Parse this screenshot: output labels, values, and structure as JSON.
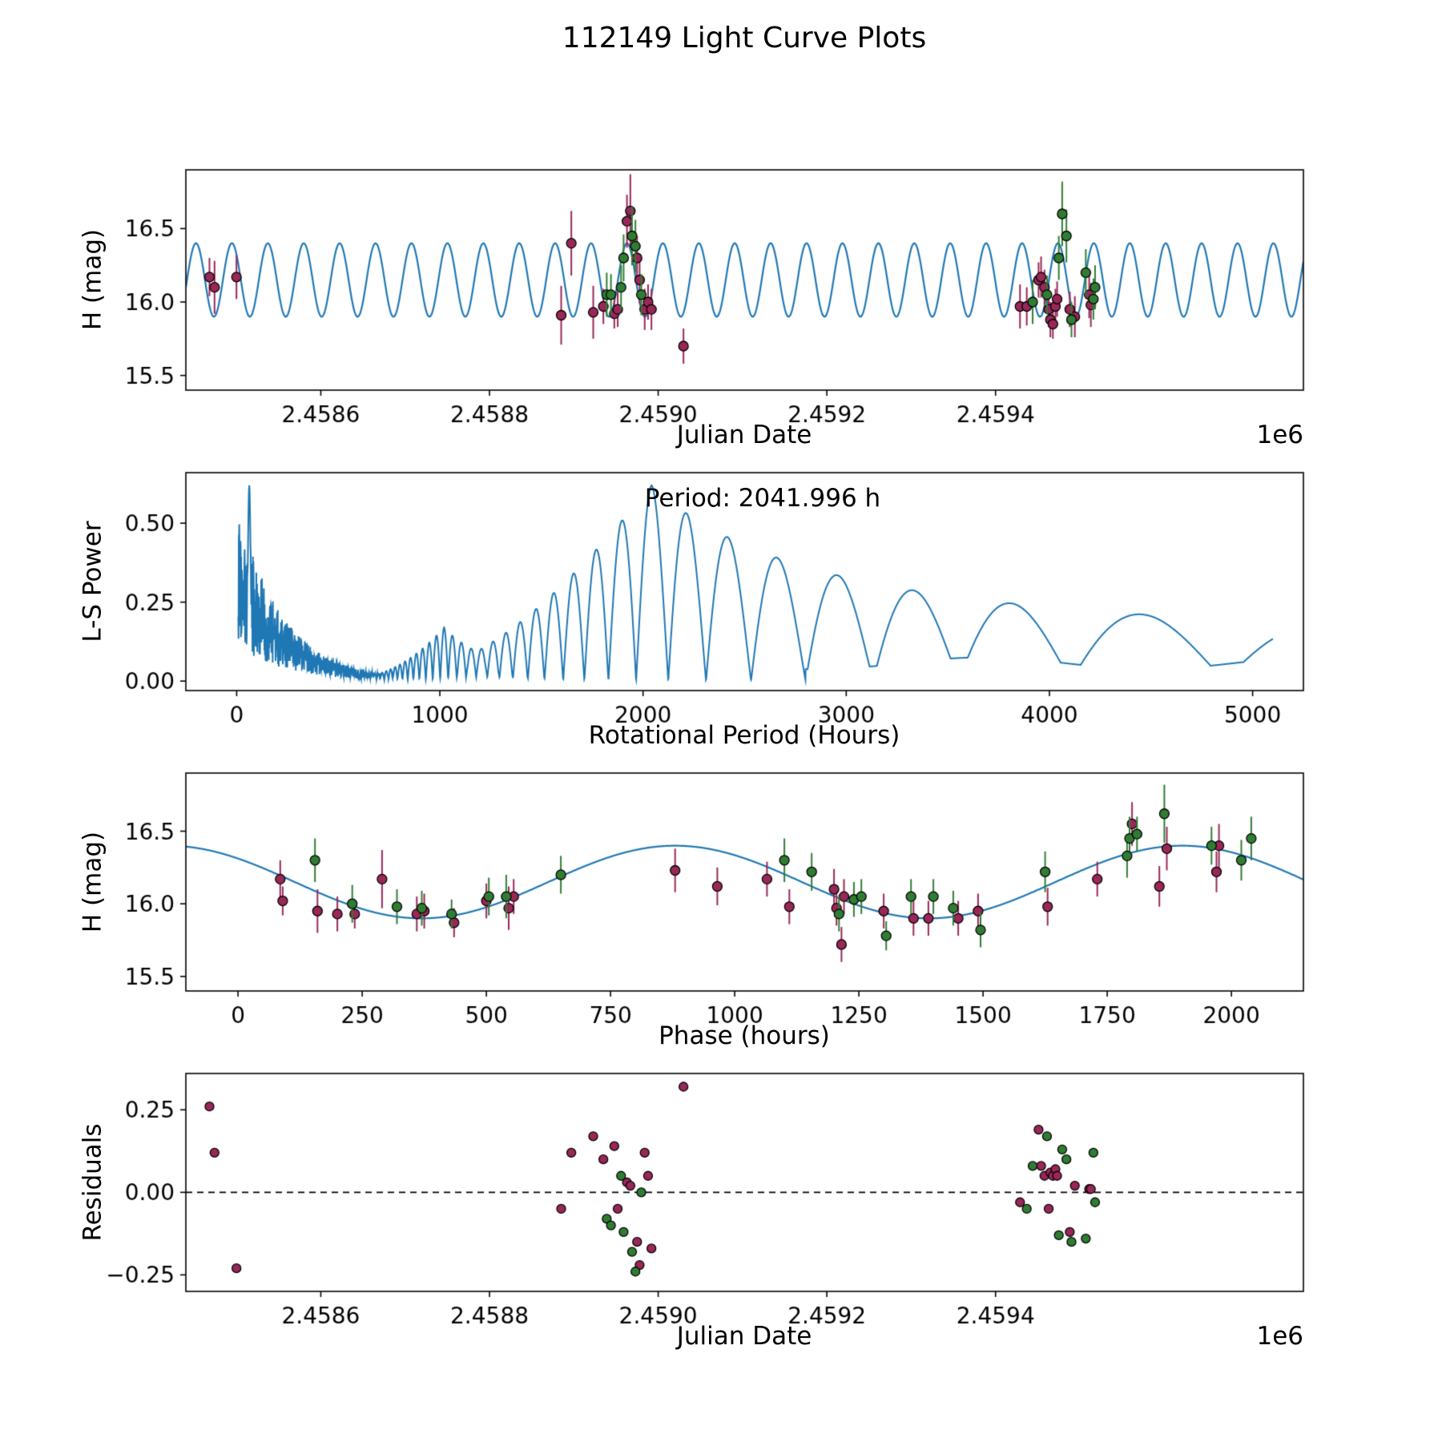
{
  "title": "112149 Light Curve Plots",
  "colors": {
    "line": "#1f77b4",
    "maroon": "#992758",
    "green": "#2f7d33",
    "edge": "#000000"
  },
  "chart_data": [
    {
      "id": "lightcurve",
      "type": "line+scatter",
      "xlabel": "Julian Date",
      "ylabel": "H (mag)",
      "offset_label": "1e6",
      "xlim": [
        2458440,
        2459765
      ],
      "ylim": [
        15.4,
        16.9
      ],
      "xticks": [
        2458600,
        2458800,
        2459000,
        2459200,
        2459400
      ],
      "xtick_labels": [
        "2.4586",
        "2.4588",
        "2.4590",
        "2.4592",
        "2.4594"
      ],
      "yticks": [
        15.5,
        16.0,
        16.5
      ],
      "ytick_labels": [
        "15.5",
        "16.0",
        "16.5"
      ],
      "marker": 6,
      "fit": {
        "type": "sinusoid",
        "mean": 16.15,
        "amplitude": 0.25,
        "period": 42.583,
        "t_max": 2458963
      },
      "series": [
        {
          "name": "observations-maroon",
          "color": "maroon",
          "points": [
            [
              2458468,
              16.17,
              0.13
            ],
            [
              2458474,
              16.1,
              0.18
            ],
            [
              2458500,
              16.17,
              0.15
            ],
            [
              2458885,
              15.91,
              0.2
            ],
            [
              2458897,
              16.4,
              0.22
            ],
            [
              2458923,
              15.93,
              0.18
            ],
            [
              2458935,
              15.97,
              0.12
            ],
            [
              2458948,
              15.92,
              0.1
            ],
            [
              2458952,
              15.95,
              0.12
            ],
            [
              2458963,
              16.55,
              0.18
            ],
            [
              2458967,
              16.62,
              0.25
            ],
            [
              2458975,
              16.3,
              0.15
            ],
            [
              2458978,
              16.15,
              0.16
            ],
            [
              2458984,
              15.95,
              0.14
            ],
            [
              2458988,
              16.0,
              0.12
            ],
            [
              2458992,
              15.95,
              0.14
            ],
            [
              2459030,
              15.7,
              0.12
            ],
            [
              2459429,
              15.97,
              0.15
            ],
            [
              2459437,
              15.97,
              0.13
            ],
            [
              2459451,
              16.15,
              0.12
            ],
            [
              2459454,
              16.17,
              0.14
            ],
            [
              2459458,
              16.1,
              0.12
            ],
            [
              2459463,
              15.95,
              0.12
            ],
            [
              2459465,
              15.88,
              0.12
            ],
            [
              2459468,
              15.85,
              0.1
            ],
            [
              2459471,
              15.97,
              0.12
            ],
            [
              2459473,
              16.02,
              0.12
            ],
            [
              2459488,
              15.95,
              0.12
            ],
            [
              2459494,
              15.9,
              0.14
            ],
            [
              2459511,
              16.05,
              0.16
            ],
            [
              2459513,
              15.98,
              0.15
            ]
          ]
        },
        {
          "name": "observations-green",
          "color": "green",
          "points": [
            [
              2458939,
              16.05,
              0.15
            ],
            [
              2458944,
              16.05,
              0.14
            ],
            [
              2458956,
              16.1,
              0.15
            ],
            [
              2458959,
              16.3,
              0.16
            ],
            [
              2458969,
              16.45,
              0.2
            ],
            [
              2458973,
              16.38,
              0.18
            ],
            [
              2458980,
              16.05,
              0.14
            ],
            [
              2459444,
              16.0,
              0.15
            ],
            [
              2459461,
              16.05,
              0.13
            ],
            [
              2459475,
              16.3,
              0.15
            ],
            [
              2459479,
              16.6,
              0.22
            ],
            [
              2459484,
              16.45,
              0.18
            ],
            [
              2459490,
              15.88,
              0.12
            ],
            [
              2459507,
              16.2,
              0.16
            ],
            [
              2459516,
              16.02,
              0.14
            ],
            [
              2459518,
              16.1,
              0.15
            ]
          ]
        }
      ]
    },
    {
      "id": "periodogram",
      "type": "line",
      "xlabel": "Rotational Period (Hours)",
      "ylabel": "L-S Power",
      "xlim": [
        -250,
        5250
      ],
      "ylim": [
        -0.03,
        0.66
      ],
      "xticks": [
        0,
        1000,
        2000,
        3000,
        4000,
        5000
      ],
      "xtick_labels": [
        "0",
        "1000",
        "2000",
        "3000",
        "4000",
        "5000"
      ],
      "yticks": [
        0,
        0.25,
        0.5
      ],
      "ytick_labels": [
        "0.00",
        "0.25",
        "0.50"
      ],
      "annotation": {
        "text": "Period: 2041.996 h"
      },
      "best_period_hours": 2041.996,
      "model": {
        "span_hours": 26400,
        "main_period": 2041.996,
        "main_amp": 0.62,
        "decay_short": 5,
        "decay_long": 6.5,
        "harmonic_period": 1021,
        "harmonic_amp": 0.17,
        "harmonic_decay": 6,
        "noise_cutoff": 900,
        "noise_base": 0.58,
        "noise_scale": 220,
        "spike_period": 62,
        "spike_amp": 0.62,
        "spike_width": 7,
        "floor_start": 2800,
        "floor_level": 0.075
      }
    },
    {
      "id": "phase-curve",
      "type": "line+scatter",
      "xlabel": "Phase (hours)",
      "ylabel": "H (mag)",
      "xlim": [
        -105,
        2145
      ],
      "ylim": [
        15.4,
        16.9
      ],
      "xticks": [
        0,
        250,
        500,
        750,
        1000,
        1250,
        1500,
        1750,
        2000
      ],
      "xtick_labels": [
        "0",
        "250",
        "500",
        "750",
        "1000",
        "1250",
        "1500",
        "1750",
        "2000"
      ],
      "yticks": [
        15.5,
        16.0,
        16.5
      ],
      "ytick_labels": [
        "15.5",
        "16.0",
        "16.5"
      ],
      "marker": 6,
      "fit": {
        "type": "sinusoid",
        "mean": 16.15,
        "amplitude": 0.25,
        "period": 1021,
        "t_max": 880
      },
      "series": [
        {
          "name": "phase-maroon",
          "color": "maroon",
          "points": [
            [
              85,
              16.17,
              0.13
            ],
            [
              90,
              16.02,
              0.1
            ],
            [
              160,
              15.95,
              0.15
            ],
            [
              200,
              15.93,
              0.12
            ],
            [
              235,
              15.93,
              0.1
            ],
            [
              290,
              16.17,
              0.2
            ],
            [
              360,
              15.93,
              0.12
            ],
            [
              375,
              15.95,
              0.12
            ],
            [
              435,
              15.87,
              0.1
            ],
            [
              500,
              16.02,
              0.12
            ],
            [
              545,
              15.97,
              0.15
            ],
            [
              555,
              16.05,
              0.12
            ],
            [
              880,
              16.23,
              0.15
            ],
            [
              965,
              16.12,
              0.13
            ],
            [
              1065,
              16.17,
              0.12
            ],
            [
              1110,
              15.98,
              0.12
            ],
            [
              1200,
              16.1,
              0.14
            ],
            [
              1205,
              15.97,
              0.12
            ],
            [
              1215,
              15.72,
              0.12
            ],
            [
              1220,
              16.05,
              0.12
            ],
            [
              1300,
              15.95,
              0.12
            ],
            [
              1360,
              15.9,
              0.12
            ],
            [
              1390,
              15.9,
              0.12
            ],
            [
              1450,
              15.9,
              0.12
            ],
            [
              1490,
              15.95,
              0.12
            ],
            [
              1630,
              15.98,
              0.13
            ],
            [
              1730,
              16.17,
              0.12
            ],
            [
              1800,
              16.55,
              0.15
            ],
            [
              1855,
              16.12,
              0.14
            ],
            [
              1870,
              16.38,
              0.15
            ],
            [
              1970,
              16.22,
              0.14
            ],
            [
              1975,
              16.4,
              0.15
            ]
          ]
        },
        {
          "name": "phase-green",
          "color": "green",
          "points": [
            [
              155,
              16.3,
              0.15
            ],
            [
              230,
              16.0,
              0.13
            ],
            [
              320,
              15.98,
              0.12
            ],
            [
              370,
              15.97,
              0.12
            ],
            [
              430,
              15.93,
              0.1
            ],
            [
              505,
              16.05,
              0.13
            ],
            [
              540,
              16.05,
              0.15
            ],
            [
              650,
              16.2,
              0.13
            ],
            [
              1100,
              16.3,
              0.15
            ],
            [
              1155,
              16.22,
              0.13
            ],
            [
              1210,
              15.93,
              0.12
            ],
            [
              1240,
              16.03,
              0.12
            ],
            [
              1255,
              16.05,
              0.12
            ],
            [
              1305,
              15.78,
              0.1
            ],
            [
              1355,
              16.05,
              0.12
            ],
            [
              1400,
              16.05,
              0.12
            ],
            [
              1440,
              15.97,
              0.12
            ],
            [
              1495,
              15.82,
              0.12
            ],
            [
              1625,
              16.22,
              0.14
            ],
            [
              1790,
              16.33,
              0.15
            ],
            [
              1795,
              16.45,
              0.15
            ],
            [
              1810,
              16.48,
              0.12
            ],
            [
              1865,
              16.62,
              0.2
            ],
            [
              1960,
              16.4,
              0.13
            ],
            [
              2020,
              16.3,
              0.14
            ],
            [
              2040,
              16.45,
              0.15
            ]
          ]
        }
      ]
    },
    {
      "id": "residuals",
      "type": "scatter",
      "xlabel": "Julian Date",
      "ylabel": "Residuals",
      "offset_label": "1e6",
      "xlim": [
        2458440,
        2459765
      ],
      "ylim": [
        -0.3,
        0.36
      ],
      "xticks": [
        2458600,
        2458800,
        2459000,
        2459200,
        2459400
      ],
      "xtick_labels": [
        "2.4586",
        "2.4588",
        "2.4590",
        "2.4592",
        "2.4594"
      ],
      "yticks": [
        -0.25,
        0,
        0.25
      ],
      "ytick_labels": [
        "−0.25",
        "0.00",
        "0.25"
      ],
      "marker": 5.5,
      "hline": 0,
      "series": [
        {
          "name": "residuals-maroon",
          "color": "maroon",
          "points": [
            [
              2458468,
              0.26
            ],
            [
              2458474,
              0.12
            ],
            [
              2458500,
              -0.23
            ],
            [
              2458885,
              -0.05
            ],
            [
              2458897,
              0.12
            ],
            [
              2458923,
              0.17
            ],
            [
              2458935,
              0.1
            ],
            [
              2458948,
              0.14
            ],
            [
              2458952,
              -0.05
            ],
            [
              2458963,
              0.03
            ],
            [
              2458967,
              0.02
            ],
            [
              2458975,
              -0.15
            ],
            [
              2458978,
              -0.22
            ],
            [
              2458984,
              0.12
            ],
            [
              2458988,
              0.05
            ],
            [
              2458992,
              -0.17
            ],
            [
              2459030,
              0.32
            ],
            [
              2459429,
              -0.03
            ],
            [
              2459451,
              0.19
            ],
            [
              2459454,
              0.08
            ],
            [
              2459458,
              0.05
            ],
            [
              2459463,
              -0.05
            ],
            [
              2459465,
              0.06
            ],
            [
              2459468,
              0.05
            ],
            [
              2459471,
              0.07
            ],
            [
              2459473,
              0.05
            ],
            [
              2459488,
              -0.12
            ],
            [
              2459494,
              0.02
            ],
            [
              2459511,
              0.01
            ],
            [
              2459513,
              0.01
            ]
          ]
        },
        {
          "name": "residuals-green",
          "color": "green",
          "points": [
            [
              2458939,
              -0.08
            ],
            [
              2458944,
              -0.1
            ],
            [
              2458956,
              0.05
            ],
            [
              2458959,
              -0.12
            ],
            [
              2458969,
              -0.18
            ],
            [
              2458973,
              -0.24
            ],
            [
              2458980,
              0.0
            ],
            [
              2459437,
              -0.05
            ],
            [
              2459444,
              0.08
            ],
            [
              2459461,
              0.17
            ],
            [
              2459475,
              -0.13
            ],
            [
              2459479,
              0.13
            ],
            [
              2459484,
              0.1
            ],
            [
              2459490,
              -0.15
            ],
            [
              2459507,
              -0.14
            ],
            [
              2459516,
              0.12
            ],
            [
              2459518,
              -0.03
            ]
          ]
        }
      ]
    }
  ]
}
